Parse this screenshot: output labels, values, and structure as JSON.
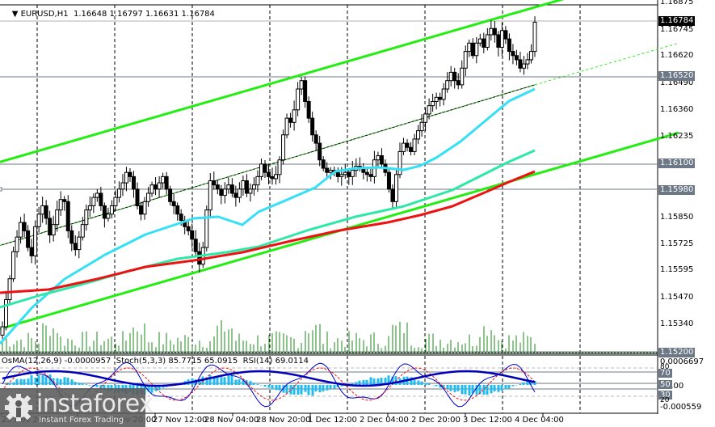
{
  "header": {
    "symbol": "EURUSD,H1",
    "ohlc": "1.16648 1.16797 1.16631 1.16784",
    "title_full": "EURUSD,H1  1.16648 1.16797 1.16631 1.16784"
  },
  "oscillator": {
    "label": "OsMA(12,26,9) -0.0000957  Stoch(5,3,3) 85.7715 65.0915  RSI(14) 69.0114",
    "axis_top": "0.0006697",
    "axis_zero": "0.00",
    "axis_bottom": "-0.000559",
    "levels": [
      "80",
      "70",
      "50",
      "30",
      "20"
    ]
  },
  "price_axis": {
    "labels": [
      "1.16875",
      "1.16745",
      "1.16620",
      "1.16490",
      "1.16360",
      "1.16235",
      "1.15850",
      "1.15725",
      "1.15595",
      "1.15470",
      "1.15340"
    ],
    "current_price_tag": "1.16784",
    "level_tags": [
      "1.16520",
      "1.16100",
      "1.15980",
      "1.15200"
    ]
  },
  "time_axis": {
    "labels": [
      "25 Nov 2025",
      "26 Nov 20:00",
      "27 Nov 12:00",
      "28 Nov 04:00",
      "28 Nov 20:00",
      "1 Dec 12:00",
      "2 Dec 04:00",
      "2 Dec 20:00",
      "3 Dec 12:00",
      "4 Dec 04:00"
    ]
  },
  "watermark": {
    "brand": "instaforex",
    "tagline": "Instant Forex Trading"
  },
  "colors": {
    "bull_candle": "#ffffff",
    "bear_candle": "#000000",
    "ma_fast": "#33e0f5",
    "ma_mid": "#2ee8a8",
    "ma_slow": "#ee1111",
    "channel": "#22ee11",
    "volume": "#1a8a1a",
    "osma": "#22bbee",
    "stoch_main": "#0000cc",
    "stoch_signal": "#ee1111",
    "rsi": "#0000bb",
    "level_line": "#6c7885"
  },
  "chart_data": {
    "type": "candlestick",
    "title": "EURUSD,H1",
    "ylim": [
      1.152,
      1.169
    ],
    "ohlc_last": {
      "open": 1.16648,
      "high": 1.16797,
      "low": 1.16631,
      "close": 1.16784
    },
    "horizontal_levels": [
      1.16784,
      1.1652,
      1.161,
      1.1598,
      1.152
    ],
    "candles_close": [
      1.1532,
      1.1545,
      1.1555,
      1.1568,
      1.1575,
      1.1582,
      1.1578,
      1.157,
      1.1566,
      1.158,
      1.1586,
      1.159,
      1.1584,
      1.1576,
      1.1581,
      1.1588,
      1.1593,
      1.1592,
      1.1578,
      1.1572,
      1.1569,
      1.1575,
      1.1581,
      1.1588,
      1.159,
      1.1594,
      1.1596,
      1.159,
      1.1584,
      1.1586,
      1.159,
      1.1594,
      1.1598,
      1.1601,
      1.1606,
      1.1604,
      1.1598,
      1.159,
      1.1586,
      1.1592,
      1.1596,
      1.16,
      1.1598,
      1.1601,
      1.1604,
      1.1598,
      1.1592,
      1.159,
      1.1586,
      1.1583,
      1.158,
      1.1578,
      1.1574,
      1.1568,
      1.1562,
      1.157,
      1.1588,
      1.1602,
      1.16,
      1.1598,
      1.1595,
      1.1598,
      1.16,
      1.1596,
      1.1594,
      1.1598,
      1.1602,
      1.1596,
      1.1598,
      1.16,
      1.1604,
      1.161,
      1.1606,
      1.1604,
      1.1603,
      1.1605,
      1.1612,
      1.1624,
      1.1632,
      1.163,
      1.1636,
      1.1646,
      1.165,
      1.164,
      1.1632,
      1.1624,
      1.162,
      1.1612,
      1.1608,
      1.1606,
      1.1607,
      1.1606,
      1.1604,
      1.1605,
      1.1606,
      1.1604,
      1.1607,
      1.1609,
      1.1608,
      1.1606,
      1.1605,
      1.1604,
      1.1612,
      1.1614,
      1.161,
      1.1606,
      1.1598,
      1.1592,
      1.1605,
      1.1616,
      1.162,
      1.1618,
      1.1616,
      1.1622,
      1.1626,
      1.163,
      1.1634,
      1.1638,
      1.164,
      1.1642,
      1.1641,
      1.1646,
      1.165,
      1.1654,
      1.165,
      1.1648,
      1.1656,
      1.1664,
      1.1668,
      1.1662,
      1.1668,
      1.167,
      1.1666,
      1.1672,
      1.1675,
      1.1672,
      1.1666,
      1.1674,
      1.167,
      1.1664,
      1.1662,
      1.166,
      1.1656,
      1.1658,
      1.166,
      1.1664,
      1.1678
    ],
    "series": [
      {
        "name": "MA fast (cyan)",
        "start_y": 1.1526,
        "end_y": 1.165
      },
      {
        "name": "MA mid (aqua-green)",
        "start_y": 1.1546,
        "end_y": 1.1617
      },
      {
        "name": "MA slow (red)",
        "start_y": 1.1554,
        "end_y": 1.1609
      },
      {
        "name": "Channel upper",
        "start_y": 1.1611,
        "end_y": 1.169
      },
      {
        "name": "Channel middle",
        "start_y": 1.1571,
        "end_y": 1.1665
      },
      {
        "name": "Channel lower",
        "start_y": 1.1531,
        "end_y": 1.1625
      }
    ],
    "indicators": {
      "OsMA(12,26,9)": -9.57e-05,
      "Stoch(5,3,3)": [
        85.7715,
        65.0915
      ],
      "RSI(14)": 69.0114
    },
    "x_tick_labels": [
      "25 Nov 2025",
      "26 Nov 20:00",
      "27 Nov 12:00",
      "28 Nov 04:00",
      "28 Nov 20:00",
      "1 Dec 12:00",
      "2 Dec 04:00",
      "2 Dec 20:00",
      "3 Dec 12:00",
      "4 Dec 04:00"
    ]
  }
}
